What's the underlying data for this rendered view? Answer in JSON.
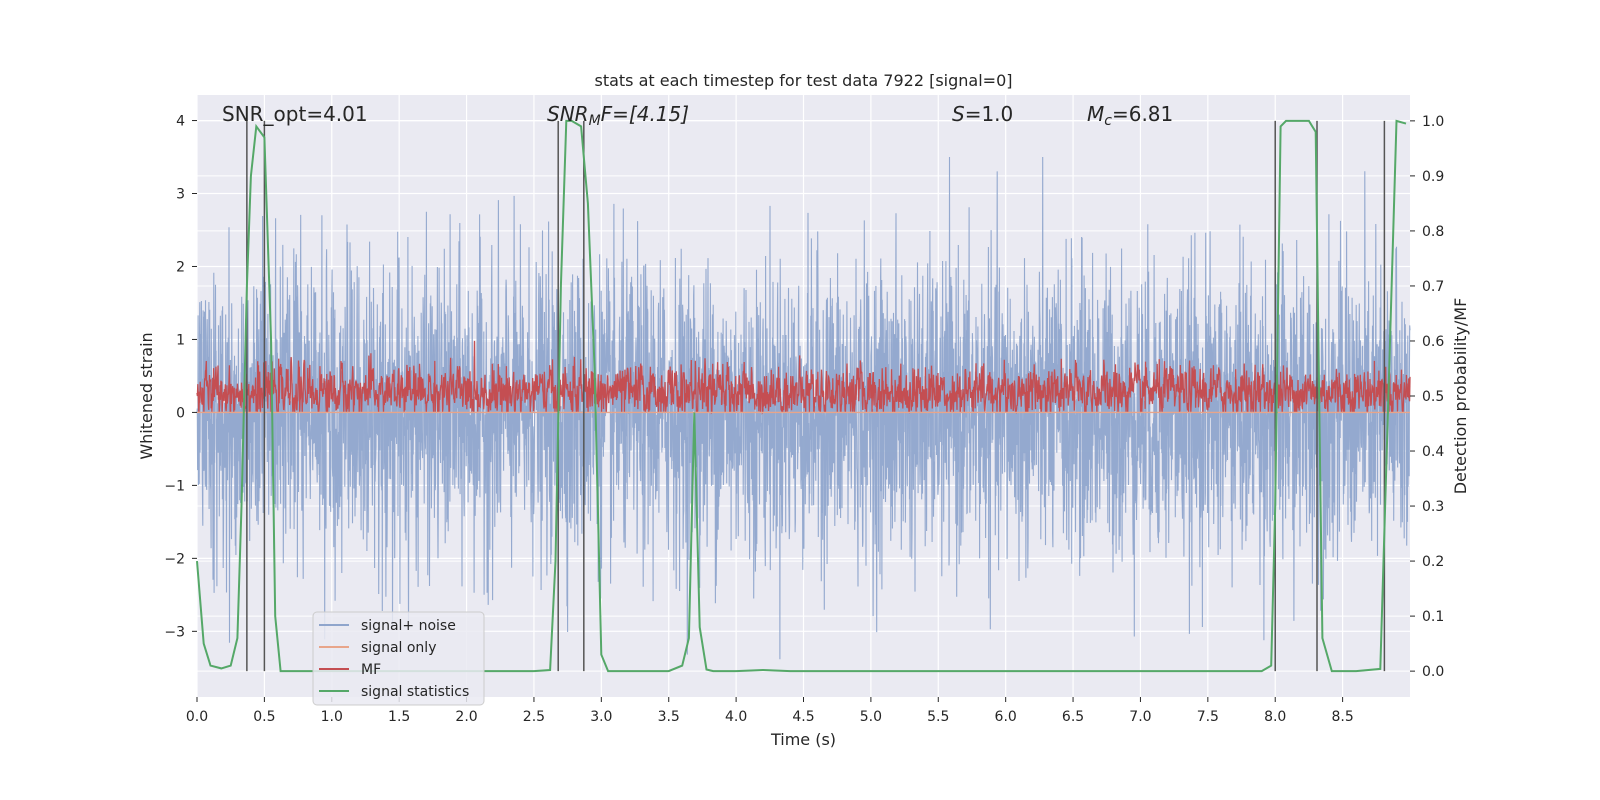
{
  "chart_data": {
    "type": "line",
    "title": "stats at each timestep for test data 7922 [signal=0]",
    "xlabel": "Time (s)",
    "ylabel": "Whitened strain",
    "ylabel_right": "Detection probability/MF",
    "xlim": [
      0,
      9.0
    ],
    "ylim": [
      -3.9,
      4.35
    ],
    "ylim_right": [
      -0.047,
      1.047
    ],
    "x_ticks": [
      "0.0",
      "0.5",
      "1.0",
      "1.5",
      "2.0",
      "2.5",
      "3.0",
      "3.5",
      "4.0",
      "4.5",
      "5.0",
      "5.5",
      "6.0",
      "6.5",
      "7.0",
      "7.5",
      "8.0",
      "8.5"
    ],
    "y_ticks": [
      "4",
      "3",
      "2",
      "1",
      "0",
      "−1",
      "−2",
      "−3"
    ],
    "y_right_ticks": [
      "1.0",
      "0.9",
      "0.8",
      "0.7",
      "0.6",
      "0.5",
      "0.4",
      "0.3",
      "0.2",
      "0.1",
      "0.0"
    ],
    "grid": true,
    "legend_placement": "lower-left",
    "annotations": {
      "snr_opt": "SNR_opt=4.01",
      "snr_mf_sym": "SNR",
      "snr_mf_sub": "M",
      "snr_mf_rest": "F=[4.15]",
      "s_sym": "S",
      "s_rest": "=1.0",
      "mc_sym": "M",
      "mc_sub": "c",
      "mc_rest": "=6.81"
    },
    "vertical_lines_x": [
      0.37,
      0.5,
      2.68,
      2.87,
      8.0,
      8.31,
      8.81
    ],
    "series": [
      {
        "name": "signal+ noise",
        "color": "#8fa5cc",
        "amplitude_range": [
          -3.6,
          3.5
        ]
      },
      {
        "name": "signal only",
        "color": "#e8a58a",
        "values": [
          0
        ]
      },
      {
        "name": "MF",
        "color": "#c44e52",
        "amplitude_range": [
          0.0,
          0.98
        ]
      },
      {
        "name": "signal statistics",
        "color": "#55a868",
        "x": [
          0.0,
          0.05,
          0.1,
          0.18,
          0.25,
          0.3,
          0.33,
          0.37,
          0.4,
          0.44,
          0.5,
          0.55,
          0.58,
          0.62,
          0.7,
          1.0,
          2.0,
          2.5,
          2.62,
          2.66,
          2.7,
          2.74,
          2.78,
          2.85,
          2.9,
          2.95,
          3.0,
          3.05,
          3.1,
          3.5,
          3.6,
          3.65,
          3.69,
          3.73,
          3.78,
          3.83,
          4.0,
          4.2,
          4.4,
          5.0,
          6.0,
          7.0,
          7.9,
          7.97,
          8.0,
          8.04,
          8.08,
          8.15,
          8.25,
          8.3,
          8.32,
          8.35,
          8.42,
          8.6,
          8.78,
          8.84,
          8.9,
          8.97
        ],
        "values": [
          0.2,
          0.05,
          0.01,
          0.005,
          0.01,
          0.06,
          0.3,
          0.7,
          0.9,
          0.99,
          0.97,
          0.6,
          0.1,
          0.0,
          0.0,
          0.0,
          0.0,
          0.0,
          0.002,
          0.2,
          0.7,
          1.0,
          1.0,
          0.99,
          0.85,
          0.55,
          0.03,
          0.0,
          0.0,
          0.0,
          0.01,
          0.06,
          0.47,
          0.08,
          0.003,
          0.0,
          0.0,
          0.002,
          0.0,
          0.0,
          0.0,
          0.0,
          0.0,
          0.01,
          0.3,
          0.99,
          1.0,
          1.0,
          1.0,
          0.98,
          0.6,
          0.06,
          0.0,
          0.0,
          0.004,
          0.5,
          1.0,
          0.995
        ]
      }
    ]
  }
}
